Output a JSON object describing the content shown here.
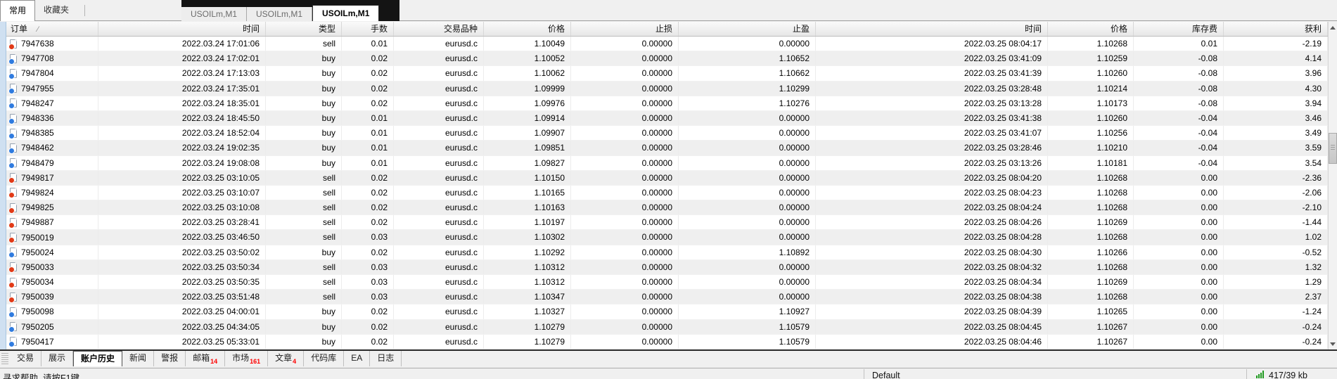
{
  "toolbar": {
    "tabs": [
      {
        "label": "常用",
        "active": true
      },
      {
        "label": "收藏夹",
        "active": false
      }
    ]
  },
  "chart_tabs": [
    {
      "label": "USOILm,M1",
      "active": false
    },
    {
      "label": "USOILm,M1",
      "active": false
    },
    {
      "label": "USOILm,M1",
      "active": true
    }
  ],
  "table": {
    "sort_glyph": "∕",
    "columns": [
      "订单",
      "时间",
      "类型",
      "手数",
      "交易品种",
      "价格",
      "止损",
      "止盈",
      "时间",
      "价格",
      "库存费",
      "获利"
    ],
    "rows": [
      {
        "order": "7947638",
        "open_time": "2022.03.24 17:01:06",
        "type": "sell",
        "lots": "0.01",
        "symbol": "eurusd.c",
        "open_price": "1.10049",
        "sl": "0.00000",
        "tp": "0.00000",
        "close_time": "2022.03.25 08:04:17",
        "close_price": "1.10268",
        "swap": "0.01",
        "profit": "-2.19"
      },
      {
        "order": "7947708",
        "open_time": "2022.03.24 17:02:01",
        "type": "buy",
        "lots": "0.02",
        "symbol": "eurusd.c",
        "open_price": "1.10052",
        "sl": "0.00000",
        "tp": "1.10652",
        "close_time": "2022.03.25 03:41:09",
        "close_price": "1.10259",
        "swap": "-0.08",
        "profit": "4.14"
      },
      {
        "order": "7947804",
        "open_time": "2022.03.24 17:13:03",
        "type": "buy",
        "lots": "0.02",
        "symbol": "eurusd.c",
        "open_price": "1.10062",
        "sl": "0.00000",
        "tp": "1.10662",
        "close_time": "2022.03.25 03:41:39",
        "close_price": "1.10260",
        "swap": "-0.08",
        "profit": "3.96"
      },
      {
        "order": "7947955",
        "open_time": "2022.03.24 17:35:01",
        "type": "buy",
        "lots": "0.02",
        "symbol": "eurusd.c",
        "open_price": "1.09999",
        "sl": "0.00000",
        "tp": "1.10299",
        "close_time": "2022.03.25 03:28:48",
        "close_price": "1.10214",
        "swap": "-0.08",
        "profit": "4.30"
      },
      {
        "order": "7948247",
        "open_time": "2022.03.24 18:35:01",
        "type": "buy",
        "lots": "0.02",
        "symbol": "eurusd.c",
        "open_price": "1.09976",
        "sl": "0.00000",
        "tp": "1.10276",
        "close_time": "2022.03.25 03:13:28",
        "close_price": "1.10173",
        "swap": "-0.08",
        "profit": "3.94"
      },
      {
        "order": "7948336",
        "open_time": "2022.03.24 18:45:50",
        "type": "buy",
        "lots": "0.01",
        "symbol": "eurusd.c",
        "open_price": "1.09914",
        "sl": "0.00000",
        "tp": "0.00000",
        "close_time": "2022.03.25 03:41:38",
        "close_price": "1.10260",
        "swap": "-0.04",
        "profit": "3.46"
      },
      {
        "order": "7948385",
        "open_time": "2022.03.24 18:52:04",
        "type": "buy",
        "lots": "0.01",
        "symbol": "eurusd.c",
        "open_price": "1.09907",
        "sl": "0.00000",
        "tp": "0.00000",
        "close_time": "2022.03.25 03:41:07",
        "close_price": "1.10256",
        "swap": "-0.04",
        "profit": "3.49"
      },
      {
        "order": "7948462",
        "open_time": "2022.03.24 19:02:35",
        "type": "buy",
        "lots": "0.01",
        "symbol": "eurusd.c",
        "open_price": "1.09851",
        "sl": "0.00000",
        "tp": "0.00000",
        "close_time": "2022.03.25 03:28:46",
        "close_price": "1.10210",
        "swap": "-0.04",
        "profit": "3.59"
      },
      {
        "order": "7948479",
        "open_time": "2022.03.24 19:08:08",
        "type": "buy",
        "lots": "0.01",
        "symbol": "eurusd.c",
        "open_price": "1.09827",
        "sl": "0.00000",
        "tp": "0.00000",
        "close_time": "2022.03.25 03:13:26",
        "close_price": "1.10181",
        "swap": "-0.04",
        "profit": "3.54"
      },
      {
        "order": "7949817",
        "open_time": "2022.03.25 03:10:05",
        "type": "sell",
        "lots": "0.02",
        "symbol": "eurusd.c",
        "open_price": "1.10150",
        "sl": "0.00000",
        "tp": "0.00000",
        "close_time": "2022.03.25 08:04:20",
        "close_price": "1.10268",
        "swap": "0.00",
        "profit": "-2.36"
      },
      {
        "order": "7949824",
        "open_time": "2022.03.25 03:10:07",
        "type": "sell",
        "lots": "0.02",
        "symbol": "eurusd.c",
        "open_price": "1.10165",
        "sl": "0.00000",
        "tp": "0.00000",
        "close_time": "2022.03.25 08:04:23",
        "close_price": "1.10268",
        "swap": "0.00",
        "profit": "-2.06"
      },
      {
        "order": "7949825",
        "open_time": "2022.03.25 03:10:08",
        "type": "sell",
        "lots": "0.02",
        "symbol": "eurusd.c",
        "open_price": "1.10163",
        "sl": "0.00000",
        "tp": "0.00000",
        "close_time": "2022.03.25 08:04:24",
        "close_price": "1.10268",
        "swap": "0.00",
        "profit": "-2.10"
      },
      {
        "order": "7949887",
        "open_time": "2022.03.25 03:28:41",
        "type": "sell",
        "lots": "0.02",
        "symbol": "eurusd.c",
        "open_price": "1.10197",
        "sl": "0.00000",
        "tp": "0.00000",
        "close_time": "2022.03.25 08:04:26",
        "close_price": "1.10269",
        "swap": "0.00",
        "profit": "-1.44"
      },
      {
        "order": "7950019",
        "open_time": "2022.03.25 03:46:50",
        "type": "sell",
        "lots": "0.03",
        "symbol": "eurusd.c",
        "open_price": "1.10302",
        "sl": "0.00000",
        "tp": "0.00000",
        "close_time": "2022.03.25 08:04:28",
        "close_price": "1.10268",
        "swap": "0.00",
        "profit": "1.02"
      },
      {
        "order": "7950024",
        "open_time": "2022.03.25 03:50:02",
        "type": "buy",
        "lots": "0.02",
        "symbol": "eurusd.c",
        "open_price": "1.10292",
        "sl": "0.00000",
        "tp": "1.10892",
        "close_time": "2022.03.25 08:04:30",
        "close_price": "1.10266",
        "swap": "0.00",
        "profit": "-0.52"
      },
      {
        "order": "7950033",
        "open_time": "2022.03.25 03:50:34",
        "type": "sell",
        "lots": "0.03",
        "symbol": "eurusd.c",
        "open_price": "1.10312",
        "sl": "0.00000",
        "tp": "0.00000",
        "close_time": "2022.03.25 08:04:32",
        "close_price": "1.10268",
        "swap": "0.00",
        "profit": "1.32"
      },
      {
        "order": "7950034",
        "open_time": "2022.03.25 03:50:35",
        "type": "sell",
        "lots": "0.03",
        "symbol": "eurusd.c",
        "open_price": "1.10312",
        "sl": "0.00000",
        "tp": "0.00000",
        "close_time": "2022.03.25 08:04:34",
        "close_price": "1.10269",
        "swap": "0.00",
        "profit": "1.29"
      },
      {
        "order": "7950039",
        "open_time": "2022.03.25 03:51:48",
        "type": "sell",
        "lots": "0.03",
        "symbol": "eurusd.c",
        "open_price": "1.10347",
        "sl": "0.00000",
        "tp": "0.00000",
        "close_time": "2022.03.25 08:04:38",
        "close_price": "1.10268",
        "swap": "0.00",
        "profit": "2.37"
      },
      {
        "order": "7950098",
        "open_time": "2022.03.25 04:00:01",
        "type": "buy",
        "lots": "0.02",
        "symbol": "eurusd.c",
        "open_price": "1.10327",
        "sl": "0.00000",
        "tp": "1.10927",
        "close_time": "2022.03.25 08:04:39",
        "close_price": "1.10265",
        "swap": "0.00",
        "profit": "-1.24"
      },
      {
        "order": "7950205",
        "open_time": "2022.03.25 04:34:05",
        "type": "buy",
        "lots": "0.02",
        "symbol": "eurusd.c",
        "open_price": "1.10279",
        "sl": "0.00000",
        "tp": "1.10579",
        "close_time": "2022.03.25 08:04:45",
        "close_price": "1.10267",
        "swap": "0.00",
        "profit": "-0.24"
      },
      {
        "order": "7950417",
        "open_time": "2022.03.25 05:33:01",
        "type": "buy",
        "lots": "0.02",
        "symbol": "eurusd.c",
        "open_price": "1.10279",
        "sl": "0.00000",
        "tp": "1.10579",
        "close_time": "2022.03.25 08:04:46",
        "close_price": "1.10267",
        "swap": "0.00",
        "profit": "-0.24"
      }
    ]
  },
  "bottom_tabs": [
    {
      "label": "交易"
    },
    {
      "label": "展示"
    },
    {
      "label": "账户历史",
      "active": true
    },
    {
      "label": "新闻"
    },
    {
      "label": "警报"
    },
    {
      "label": "邮箱",
      "badge": "14"
    },
    {
      "label": "市场",
      "badge": "161"
    },
    {
      "label": "文章",
      "badge": "4"
    },
    {
      "label": "代码库"
    },
    {
      "label": "EA"
    },
    {
      "label": "日志"
    }
  ],
  "status_bar": {
    "help_text": "寻求帮助, 请按F1键",
    "profile": "Default",
    "network": "417/39 kb"
  },
  "colors": {
    "sell_dot": "#e13a17",
    "buy_dot": "#2f7bdf",
    "badge_red": "#ff0000",
    "connection_green": "#1f9a1f",
    "row_alt": "#efefef"
  }
}
